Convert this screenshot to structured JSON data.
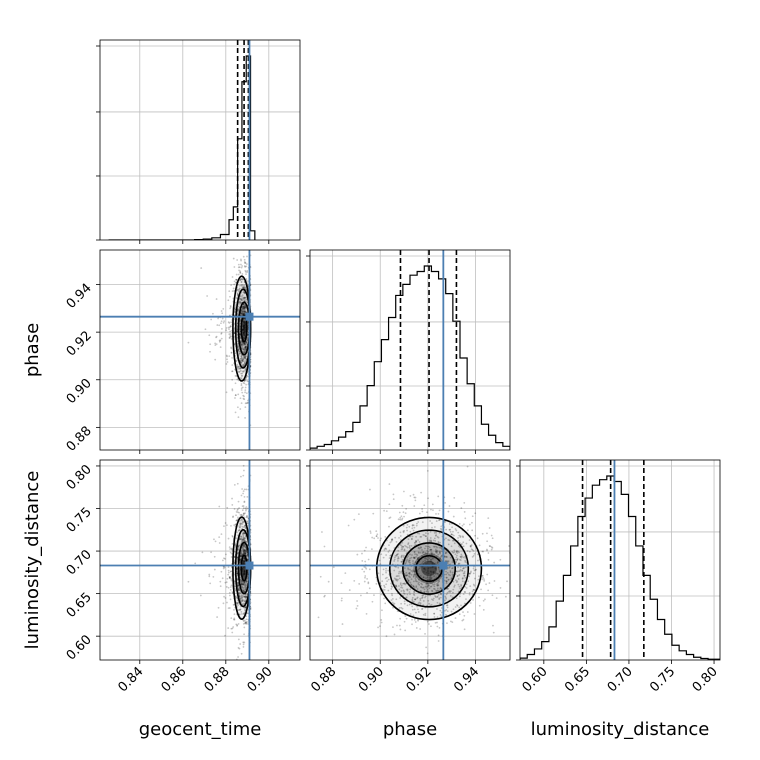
{
  "chart_data": {
    "type": "corner",
    "parameters": [
      "geocent_time",
      "phase",
      "luminosity_distance"
    ],
    "truths": {
      "geocent_time": 0.891,
      "phase": 0.9265,
      "luminosity_distance": 0.683
    },
    "axes": {
      "geocent_time": {
        "label": "geocent_time",
        "range": [
          0.8215,
          0.9145
        ],
        "ticks": [
          0.84,
          0.86,
          0.88,
          0.9
        ],
        "tick_labels": [
          "0.84",
          "0.86",
          "0.88",
          "0.90"
        ]
      },
      "phase": {
        "label": "phase",
        "range": [
          0.8705,
          0.9545
        ],
        "ticks": [
          0.88,
          0.9,
          0.92,
          0.94
        ],
        "tick_labels": [
          "0.88",
          "0.90",
          "0.92",
          "0.94"
        ]
      },
      "luminosity_distance": {
        "label": "luminosity_distance",
        "range": [
          0.572,
          0.807
        ],
        "ticks": [
          0.6,
          0.65,
          0.7,
          0.75,
          0.8
        ],
        "tick_labels": [
          "0.60",
          "0.65",
          "0.70",
          "0.75",
          "0.80"
        ]
      }
    },
    "marginals": [
      {
        "parameter": "geocent_time",
        "quantiles": [
          0.8855,
          0.8885,
          0.8905
        ],
        "bin_edges": [
          0.8255,
          0.8295,
          0.8335,
          0.8375,
          0.8415,
          0.8455,
          0.8495,
          0.8535,
          0.8575,
          0.8615,
          0.8655,
          0.8695,
          0.8735,
          0.8775,
          0.8815,
          0.8835,
          0.8855,
          0.8875,
          0.8895,
          0.8915,
          0.8935
        ],
        "counts": [
          0,
          0,
          0,
          0,
          0,
          0,
          0,
          0,
          0,
          0,
          0.002,
          0.005,
          0.012,
          0.03,
          0.11,
          0.18,
          0.55,
          0.86,
          1.0,
          0.05
        ]
      },
      {
        "parameter": "phase",
        "quantiles": [
          0.9085,
          0.9205,
          0.932
        ],
        "bin_edges": [
          0.8705,
          0.8735,
          0.8765,
          0.8795,
          0.8825,
          0.8855,
          0.8885,
          0.8915,
          0.8945,
          0.8975,
          0.9005,
          0.9035,
          0.9065,
          0.9095,
          0.9125,
          0.9155,
          0.9185,
          0.9215,
          0.9245,
          0.9275,
          0.9305,
          0.9335,
          0.9365,
          0.9395,
          0.9425,
          0.9455,
          0.9485,
          0.9515,
          0.9545
        ],
        "counts": [
          0.01,
          0.02,
          0.03,
          0.05,
          0.07,
          0.1,
          0.15,
          0.24,
          0.35,
          0.48,
          0.6,
          0.72,
          0.84,
          0.9,
          0.95,
          0.97,
          1.0,
          0.97,
          0.93,
          0.85,
          0.7,
          0.5,
          0.36,
          0.24,
          0.14,
          0.08,
          0.04,
          0.02
        ]
      },
      {
        "parameter": "luminosity_distance",
        "quantiles": [
          0.6455,
          0.6785,
          0.7175
        ],
        "bin_edges": [
          0.572,
          0.5805,
          0.589,
          0.5975,
          0.606,
          0.6145,
          0.623,
          0.6315,
          0.64,
          0.6485,
          0.657,
          0.6655,
          0.674,
          0.6825,
          0.691,
          0.6995,
          0.708,
          0.7165,
          0.725,
          0.7335,
          0.742,
          0.7505,
          0.759,
          0.7675,
          0.776,
          0.7845,
          0.793,
          0.807
        ],
        "counts": [
          0.01,
          0.03,
          0.06,
          0.1,
          0.18,
          0.32,
          0.46,
          0.62,
          0.78,
          0.88,
          0.95,
          0.98,
          1.0,
          0.97,
          0.9,
          0.78,
          0.62,
          0.46,
          0.33,
          0.22,
          0.14,
          0.08,
          0.05,
          0.03,
          0.015,
          0.008,
          0.004
        ]
      }
    ],
    "joints": [
      {
        "x": "geocent_time",
        "y": "phase",
        "mean": [
          0.8885,
          0.9215
        ],
        "std": [
          0.0026,
          0.011
        ],
        "contours_sigma": [
          0.5,
          1.0,
          1.5,
          2.0
        ],
        "contour_clip_max_x": 0.8915
      },
      {
        "x": "geocent_time",
        "y": "luminosity_distance",
        "mean": [
          0.8885,
          0.68
        ],
        "std": [
          0.0026,
          0.03
        ],
        "contours_sigma": [
          0.5,
          1.0,
          1.5,
          2.0
        ],
        "contour_clip_max_x": 0.8915
      },
      {
        "x": "phase",
        "y": "luminosity_distance",
        "mean": [
          0.9205,
          0.6795
        ],
        "std": [
          0.011,
          0.03
        ],
        "contours_sigma": [
          0.5,
          1.0,
          1.5,
          2.0
        ]
      }
    ],
    "colors": {
      "truth": "#4c7fb2",
      "grid": "#bfbfbf",
      "hist": "#000000",
      "quantile": "#000000",
      "density": "#000000"
    },
    "grid": true
  }
}
